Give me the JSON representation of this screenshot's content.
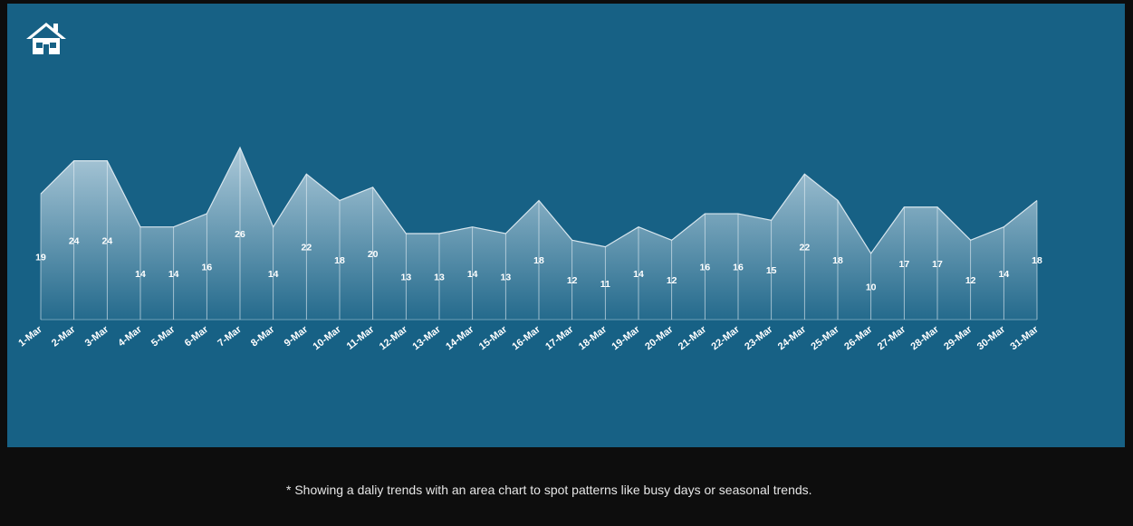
{
  "icons": {
    "home": "home-icon"
  },
  "colors": {
    "panel": "#176185",
    "background": "#0d0d0d",
    "text": "#ffffff"
  },
  "footnote": "* Showing a daliy trends with an area chart to spot patterns like busy days or seasonal trends.",
  "chart_data": {
    "type": "area",
    "title": "",
    "xlabel": "",
    "ylabel": "",
    "ylim": [
      0,
      26
    ],
    "grid": false,
    "legend": "none",
    "categories": [
      "1-Mar",
      "2-Mar",
      "3-Mar",
      "4-Mar",
      "5-Mar",
      "6-Mar",
      "7-Mar",
      "8-Mar",
      "9-Mar",
      "10-Mar",
      "11-Mar",
      "12-Mar",
      "13-Mar",
      "14-Mar",
      "15-Mar",
      "16-Mar",
      "17-Mar",
      "18-Mar",
      "19-Mar",
      "20-Mar",
      "21-Mar",
      "22-Mar",
      "23-Mar",
      "24-Mar",
      "25-Mar",
      "26-Mar",
      "27-Mar",
      "28-Mar",
      "29-Mar",
      "30-Mar",
      "31-Mar"
    ],
    "values": [
      19,
      24,
      24,
      14,
      14,
      16,
      26,
      14,
      22,
      18,
      20,
      13,
      13,
      14,
      13,
      18,
      12,
      11,
      14,
      12,
      16,
      16,
      15,
      22,
      18,
      10,
      17,
      17,
      12,
      14,
      18
    ]
  }
}
